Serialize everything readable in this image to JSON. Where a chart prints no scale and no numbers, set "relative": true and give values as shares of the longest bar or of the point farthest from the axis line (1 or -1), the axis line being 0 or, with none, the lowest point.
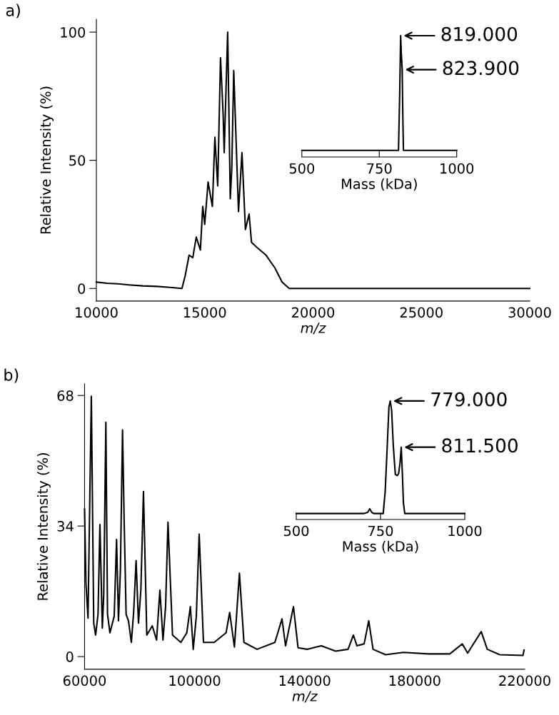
{
  "chart_data": [
    {
      "type": "line",
      "title": "a)",
      "xlabel": "m/z",
      "ylabel": "Relative Intensity (%)",
      "xlim": [
        10000,
        30000
      ],
      "xticks": [
        10000,
        15000,
        20000,
        25000,
        30000
      ],
      "ylim": [
        -4.9,
        105
      ],
      "yticks": [
        0,
        50,
        100
      ],
      "series": [
        {
          "color": "#000000",
          "x": [
            10000,
            10500,
            11000,
            11500,
            12140,
            12800,
            13400,
            13950,
            14100,
            14280,
            14450,
            14610,
            14800,
            14910,
            15000,
            15157,
            15354,
            15470,
            15600,
            15730,
            15850,
            15900,
            16060,
            16180,
            16250,
            16340,
            16560,
            16720,
            16880,
            17050,
            17160,
            17410,
            17830,
            18240,
            18570,
            18900,
            20000,
            22000,
            25000,
            28000,
            30000
          ],
          "values": [
            2.5,
            2,
            1.8,
            1.4,
            1,
            0.8,
            0.4,
            0,
            5,
            13,
            12,
            20,
            15,
            32,
            25,
            41.5,
            32,
            59,
            40,
            90,
            68,
            53,
            100,
            35,
            47,
            85,
            30,
            53,
            23,
            29,
            18,
            16,
            13,
            8,
            2.5,
            0,
            0,
            0,
            0,
            0,
            0
          ]
        }
      ]
    },
    {
      "type": "line",
      "relative": true,
      "tick_labels": "x",
      "xlabel": "Mass (kDa)",
      "xlim": [
        500,
        1000
      ],
      "xticks": [
        500,
        750,
        1000
      ],
      "annotations": [
        {
          "text": "819.000",
          "x": 819,
          "y": 1
        },
        {
          "text": "823.900",
          "x": 823.9,
          "y": 0.72
        }
      ],
      "series": [
        {
          "color": "#000000",
          "x": [
            500,
            700,
            812,
            816,
            819,
            821,
            824,
            826,
            828,
            1000
          ],
          "values": [
            0.055,
            0.055,
            0.055,
            0.53,
            1,
            0.86,
            0.72,
            0.34,
            0.055,
            0.055
          ]
        }
      ]
    },
    {
      "type": "line",
      "title": "b)",
      "xlabel": "m/z",
      "ylabel": "Relative Intensity (%)",
      "xlim": [
        60000,
        220000
      ],
      "xticks": [
        60000,
        100000,
        140000,
        180000,
        220000
      ],
      "ylim": [
        -3.3,
        71
      ],
      "yticks": [
        0,
        34,
        68
      ],
      "series": [
        {
          "color": "#000000",
          "x": [
            60000,
            60500,
            61250,
            62460,
            63330,
            64020,
            64890,
            65580,
            66450,
            66960,
            67740,
            68340,
            69210,
            70770,
            71630,
            72320,
            73020,
            73800,
            74400,
            75100,
            75960,
            77000,
            77860,
            78730,
            79590,
            80460,
            81410,
            82620,
            84610,
            86170,
            87380,
            88500,
            89450,
            90320,
            91970,
            95000,
            97160,
            98460,
            99500,
            100620,
            101660,
            103220,
            107110,
            111440,
            112740,
            114470,
            116290,
            117930,
            122690,
            129180,
            131760,
            133060,
            135920,
            137600,
            140850,
            146040,
            151230,
            155770,
            157720,
            159010,
            161610,
            163300,
            164860,
            169400,
            175890,
            184970,
            192760,
            197300,
            199250,
            204180,
            206380,
            210920,
            219360,
            219750
          ],
          "values": [
            38.4,
            19,
            10,
            67.8,
            8.7,
            5.6,
            11,
            34.4,
            7.4,
            16,
            61,
            11,
            6.2,
            10.5,
            30.5,
            9.3,
            22.3,
            59,
            35,
            11,
            9.3,
            3.7,
            11.8,
            25,
            8.7,
            17.3,
            43,
            5.6,
            8,
            4.3,
            17.3,
            4.3,
            13,
            35,
            5.6,
            3.7,
            6.2,
            13,
            1.9,
            10.5,
            31.9,
            3.7,
            3.7,
            6.2,
            11.5,
            2.5,
            21.7,
            3.7,
            1.9,
            3.7,
            9.8,
            2.8,
            13,
            2.3,
            1.9,
            2.8,
            1.4,
            1.9,
            5.6,
            2.8,
            3.3,
            9.3,
            1.9,
            0.5,
            1.1,
            0.7,
            0.7,
            3.3,
            0.9,
            6.5,
            1.9,
            0.5,
            0.3,
            1.7
          ]
        }
      ]
    },
    {
      "type": "line",
      "relative": true,
      "tick_labels": "x",
      "xlabel": "Mass (kDa)",
      "xlim": [
        500,
        1000
      ],
      "xticks": [
        500,
        750,
        1000
      ],
      "annotations": [
        {
          "text": "779.000",
          "x": 779,
          "y": 1
        },
        {
          "text": "811.500",
          "x": 811.5,
          "y": 0.61
        }
      ],
      "series": [
        {
          "color": "#000000",
          "x": [
            500,
            700,
            712,
            718,
            724,
            730,
            758,
            764,
            770,
            775,
            779,
            783,
            788,
            794,
            800,
            804,
            808,
            811.5,
            815,
            818,
            822,
            1000
          ],
          "values": [
            0.05,
            0.05,
            0.06,
            0.09,
            0.06,
            0.05,
            0.05,
            0.24,
            0.62,
            0.95,
            1,
            0.92,
            0.62,
            0.38,
            0.37,
            0.39,
            0.48,
            0.61,
            0.38,
            0.14,
            0.05,
            0.05
          ]
        }
      ]
    }
  ]
}
